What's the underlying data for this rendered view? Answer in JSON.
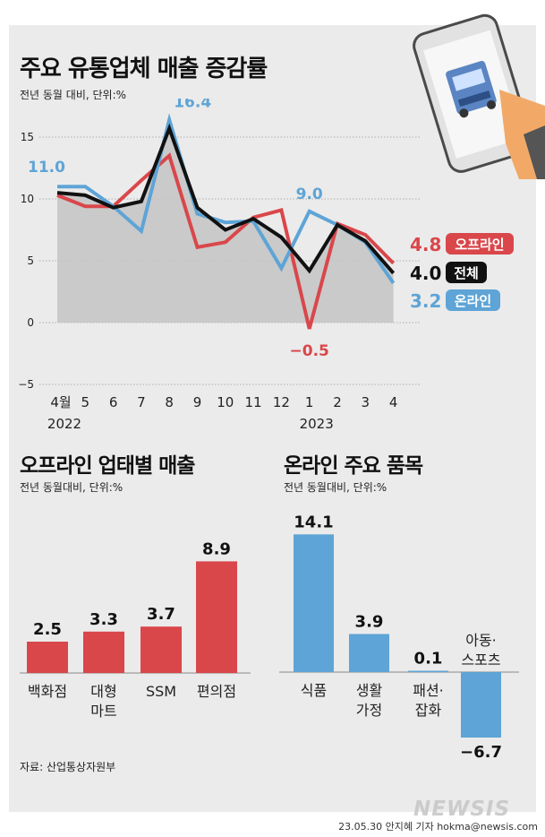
{
  "main_chart": {
    "title": "주요 유통업체 매출 증감률",
    "subtitle": "전년 동월 대비, 단위:%",
    "chart_data": {
      "type": "line",
      "categories": [
        "4월",
        "5",
        "6",
        "7",
        "8",
        "9",
        "10",
        "11",
        "12",
        "1",
        "2",
        "3",
        "4"
      ],
      "year_labels": [
        {
          "label": "2022",
          "at": 0
        },
        {
          "label": "2023",
          "at": 9
        }
      ],
      "yticks": [
        15,
        10,
        5,
        0,
        -5
      ],
      "ylim": [
        -5,
        16.4
      ],
      "series": [
        {
          "name": "오프라인",
          "color": "#d9474b",
          "values": [
            10.3,
            9.4,
            9.4,
            11.5,
            13.5,
            6.1,
            6.5,
            8.5,
            9.1,
            -0.5,
            8.0,
            7.1,
            4.8
          ]
        },
        {
          "name": "온라인",
          "color": "#5ea4d6",
          "values": [
            11.0,
            11.0,
            9.4,
            7.4,
            16.4,
            8.8,
            8.1,
            8.2,
            4.4,
            9.0,
            7.9,
            6.5,
            3.2
          ]
        },
        {
          "name": "전체",
          "color": "#111111",
          "values": [
            10.5,
            10.3,
            9.3,
            9.8,
            15.7,
            9.3,
            7.5,
            8.4,
            6.9,
            4.2,
            7.9,
            6.6,
            4.0
          ]
        }
      ],
      "data_labels": [
        {
          "series": 1,
          "index": 0,
          "text": "11.0"
        },
        {
          "series": 1,
          "index": 4,
          "text": "16.4"
        },
        {
          "series": 1,
          "index": 9,
          "text": "9.0"
        },
        {
          "series": 0,
          "index": 9,
          "text": "-0.5"
        }
      ],
      "end_labels": [
        {
          "series": 0,
          "value_text": "4.8",
          "name": "오프라인"
        },
        {
          "series": 2,
          "value_text": "4.0",
          "name": "전체"
        },
        {
          "series": 1,
          "value_text": "3.2",
          "name": "온라인"
        }
      ]
    }
  },
  "offline_chart": {
    "title": "오프라인 업태별 매출",
    "subtitle": "전년 동월대비, 단위:%",
    "chart_data": {
      "type": "bar",
      "color": "#d9474b",
      "categories": [
        [
          "백화점"
        ],
        [
          "대형",
          "마트"
        ],
        [
          "SSM"
        ],
        [
          "편의점"
        ]
      ],
      "values": [
        2.5,
        3.3,
        3.7,
        8.9
      ],
      "value_labels": [
        "2.5",
        "3.3",
        "3.7",
        "8.9"
      ]
    }
  },
  "online_chart": {
    "title": "온라인 주요 품목",
    "subtitle": "전년 동월대비, 단위:%",
    "chart_data": {
      "type": "bar",
      "color": "#5ea4d6",
      "categories": [
        [
          "식품"
        ],
        [
          "생활",
          "가정"
        ],
        [
          "패션·",
          "잡화"
        ],
        [
          "아동·",
          "스포츠"
        ]
      ],
      "values": [
        14.1,
        3.9,
        0.1,
        -6.7
      ],
      "value_labels": [
        "14.1",
        "3.9",
        "0.1",
        "-6.7"
      ]
    }
  },
  "source": "자료: 산업통상자원부",
  "byline": "23.05.30 안지혜 기자 hokma@newsis.com",
  "watermark": "NEWSIS"
}
